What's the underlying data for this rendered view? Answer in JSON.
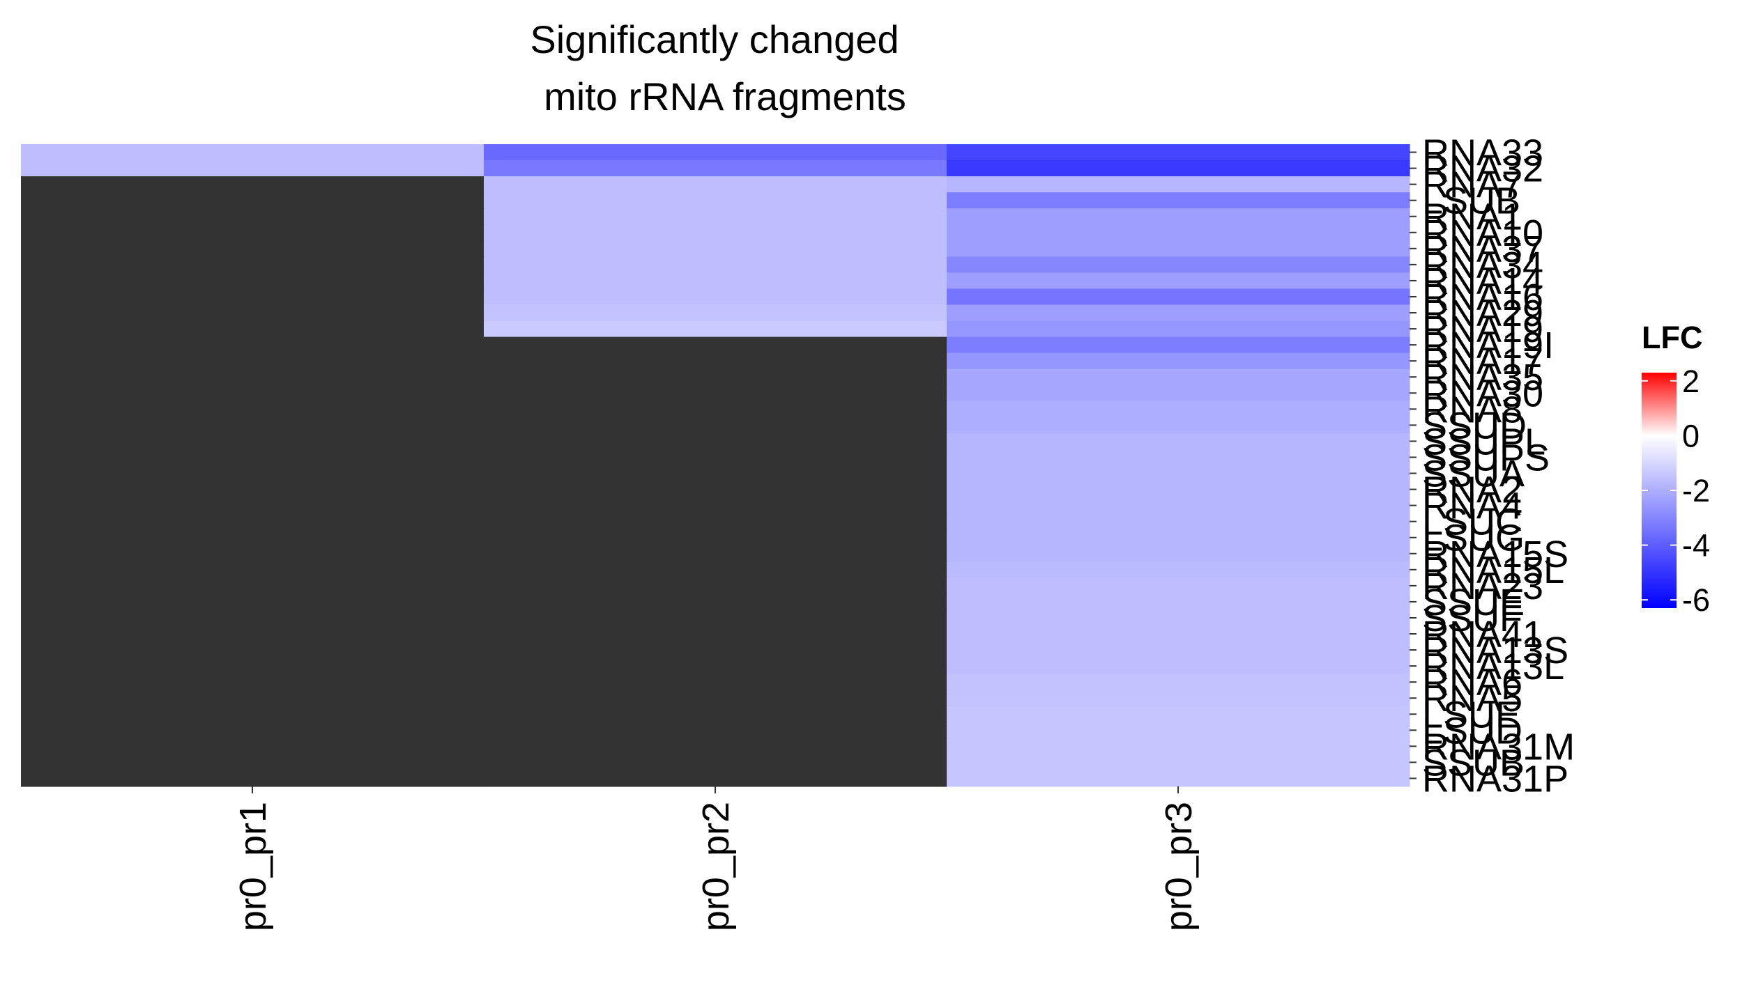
{
  "chart_data": {
    "type": "heatmap",
    "title_lines": [
      "Significantly changed",
      "mito rRNA fragments"
    ],
    "columns": [
      "pr0_pr1",
      "pr0_pr2",
      "pr0_pr3"
    ],
    "rows": [
      "RNA33",
      "RNA32",
      "RNA7",
      "LSUB",
      "RNA1",
      "RNA10",
      "RNA37",
      "RNA34",
      "RNA14",
      "RNA16",
      "RNA29",
      "RNA19",
      "RNA19I",
      "RNA17",
      "RNA35",
      "RNA30",
      "RNA8",
      "SSUD",
      "SSUPL",
      "SSUPS",
      "SSUA",
      "RNA2",
      "RNA4",
      "LSUC",
      "LSUG",
      "RNA15S",
      "RNA15L",
      "RNA23",
      "SSUE",
      "SSUF",
      "RNA41",
      "RNA13S",
      "RNA13L",
      "RNA6",
      "RNA5",
      "LSUE",
      "LSUD",
      "RNA31M",
      "SSUB",
      "RNA31P"
    ],
    "values": [
      [
        -1.6,
        -3.7,
        -4.6
      ],
      [
        -1.6,
        -3.3,
        -4.9
      ],
      [
        null,
        -1.6,
        -1.8
      ],
      [
        null,
        -1.6,
        -3.2
      ],
      [
        null,
        -1.6,
        -2.4
      ],
      [
        null,
        -1.6,
        -2.4
      ],
      [
        null,
        -1.6,
        -2.4
      ],
      [
        null,
        -1.6,
        -3.0
      ],
      [
        null,
        -1.6,
        -2.4
      ],
      [
        null,
        -1.6,
        -3.4
      ],
      [
        null,
        -1.5,
        -2.4
      ],
      [
        null,
        -1.3,
        -2.6
      ],
      [
        null,
        null,
        -3.2
      ],
      [
        null,
        null,
        -2.6
      ],
      [
        null,
        null,
        -2.2
      ],
      [
        null,
        null,
        -2.2
      ],
      [
        null,
        null,
        -2.0
      ],
      [
        null,
        null,
        -2.0
      ],
      [
        null,
        null,
        -1.8
      ],
      [
        null,
        null,
        -1.8
      ],
      [
        null,
        null,
        -1.8
      ],
      [
        null,
        null,
        -1.8
      ],
      [
        null,
        null,
        -1.8
      ],
      [
        null,
        null,
        -1.8
      ],
      [
        null,
        null,
        -1.8
      ],
      [
        null,
        null,
        -1.8
      ],
      [
        null,
        null,
        -1.7
      ],
      [
        null,
        null,
        -1.6
      ],
      [
        null,
        null,
        -1.6
      ],
      [
        null,
        null,
        -1.6
      ],
      [
        null,
        null,
        -1.6
      ],
      [
        null,
        null,
        -1.6
      ],
      [
        null,
        null,
        -1.6
      ],
      [
        null,
        null,
        -1.5
      ],
      [
        null,
        null,
        -1.5
      ],
      [
        null,
        null,
        -1.4
      ],
      [
        null,
        null,
        -1.4
      ],
      [
        null,
        null,
        -1.4
      ],
      [
        null,
        null,
        -1.4
      ],
      [
        null,
        null,
        -1.4
      ]
    ],
    "na_color": "#333333",
    "color_scale": {
      "low": "#0000ff",
      "mid": "#ffffff",
      "high": "#ff0000",
      "min": -6.3,
      "mid_value": 0,
      "max": 2.3
    },
    "legend": {
      "title": "LFC",
      "ticks": [
        2,
        0,
        -2,
        -4,
        -6
      ],
      "position": "right"
    }
  }
}
